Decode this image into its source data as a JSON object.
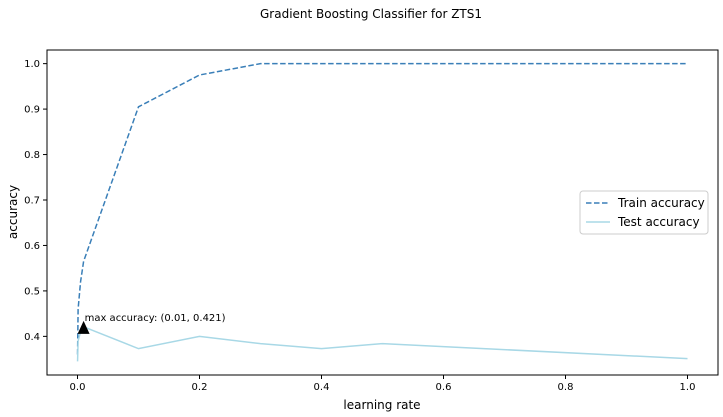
{
  "chart_data": {
    "type": "line",
    "title": "Gradient Boosting Classifier for ZTS1",
    "xlabel": "learning rate",
    "ylabel": "accuracy",
    "xlim": [
      -0.05,
      1.05
    ],
    "ylim": [
      0.315,
      1.03
    ],
    "xticks": [
      0.0,
      0.2,
      0.4,
      0.6,
      0.8,
      1.0
    ],
    "xtick_labels": [
      "0.0",
      "0.2",
      "0.4",
      "0.6",
      "0.8",
      "1.0"
    ],
    "yticks": [
      0.4,
      0.5,
      0.6,
      0.7,
      0.8,
      0.9,
      1.0
    ],
    "ytick_labels": [
      "0.4",
      "0.5",
      "0.6",
      "0.7",
      "0.8",
      "0.9",
      "1.0"
    ],
    "grid": false,
    "legend_position": "center-right",
    "series": [
      {
        "name": "Train accuracy",
        "style": "dashed",
        "color": "#3a7fb8",
        "x": [
          0.0001,
          0.001,
          0.005,
          0.01,
          0.1,
          0.2,
          0.3,
          0.4,
          0.5,
          1.0
        ],
        "y": [
          0.36,
          0.46,
          0.52,
          0.565,
          0.905,
          0.975,
          1.0,
          1.0,
          1.0,
          1.0
        ]
      },
      {
        "name": "Test accuracy",
        "style": "solid",
        "color": "#a8d8e6",
        "x": [
          0.0001,
          0.001,
          0.005,
          0.01,
          0.1,
          0.2,
          0.3,
          0.4,
          0.5,
          1.0
        ],
        "y": [
          0.345,
          0.39,
          0.41,
          0.421,
          0.373,
          0.4,
          0.384,
          0.373,
          0.384,
          0.351
        ]
      }
    ],
    "annotation": {
      "text": "max accuracy: (0.01, 0.421)",
      "x": 0.01,
      "y": 0.421
    }
  }
}
